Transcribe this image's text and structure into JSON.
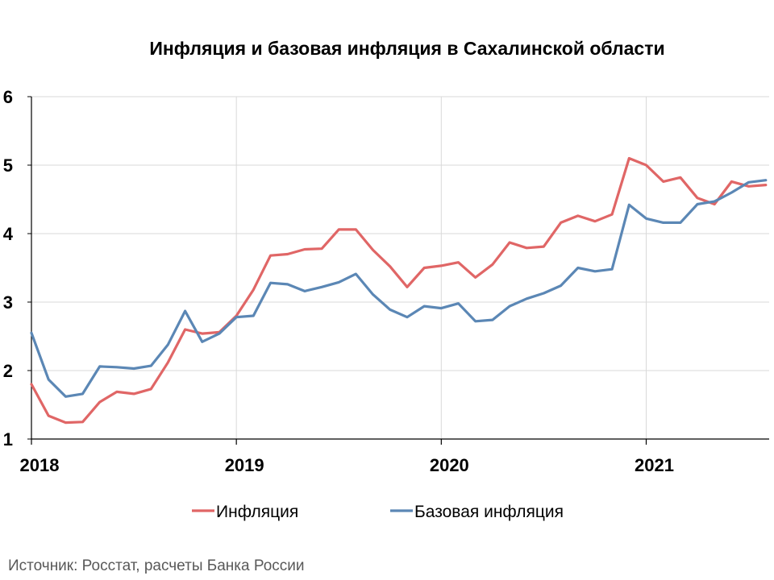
{
  "chart_data": {
    "type": "line",
    "title": "Инфляция и базовая инфляция в Сахалинской области",
    "xlabel": "",
    "ylabel": "",
    "ylim": [
      1,
      6
    ],
    "yticks": [
      "1",
      "2",
      "3",
      "4",
      "5",
      "6"
    ],
    "xticks": [
      "2018",
      "2019",
      "2020",
      "2021"
    ],
    "grid": true,
    "legend_position": "bottom",
    "x_start": "2018-01",
    "x_step": "month",
    "series": [
      {
        "name": "Инфляция",
        "color": "#e06666",
        "values": [
          1.8,
          1.34,
          1.24,
          1.25,
          1.54,
          1.69,
          1.66,
          1.73,
          2.12,
          2.6,
          2.54,
          2.56,
          2.8,
          3.18,
          3.68,
          3.7,
          3.77,
          3.78,
          4.06,
          4.06,
          3.76,
          3.52,
          3.22,
          3.5,
          3.53,
          3.58,
          3.36,
          3.55,
          3.87,
          3.79,
          3.81,
          4.16,
          4.26,
          4.18,
          4.28,
          5.1,
          5.0,
          4.76,
          4.82,
          4.52,
          4.43,
          4.76,
          4.69,
          4.71
        ]
      },
      {
        "name": "Базовая инфляция",
        "color": "#5b87b5",
        "values": [
          2.55,
          1.87,
          1.62,
          1.66,
          2.06,
          2.05,
          2.03,
          2.07,
          2.38,
          2.87,
          2.42,
          2.54,
          2.78,
          2.8,
          3.28,
          3.26,
          3.16,
          3.22,
          3.29,
          3.41,
          3.11,
          2.89,
          2.78,
          2.94,
          2.91,
          2.98,
          2.72,
          2.74,
          2.94,
          3.05,
          3.13,
          3.24,
          3.5,
          3.45,
          3.48,
          4.42,
          4.22,
          4.16,
          4.16,
          4.43,
          4.47,
          4.6,
          4.75,
          4.78
        ]
      }
    ]
  },
  "source": "Источник: Росстат, расчеты Банка России"
}
